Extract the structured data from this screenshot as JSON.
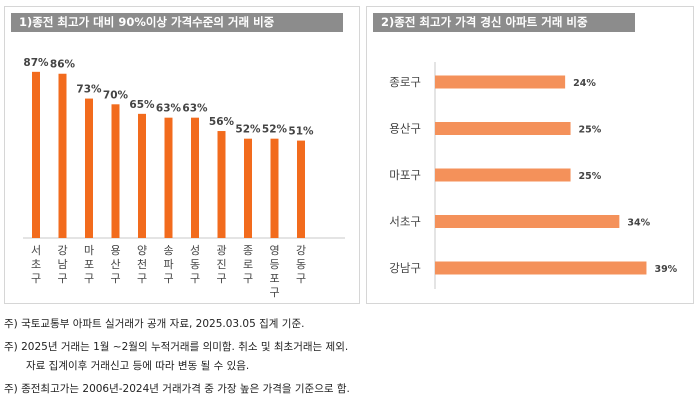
{
  "chart_data": [
    {
      "type": "bar",
      "title": "1)종전 최고가 대비 90%이상 가격수준의 거래 비중",
      "categories": [
        "서초구",
        "강남구",
        "마포구",
        "용산구",
        "양천구",
        "송파구",
        "성동구",
        "광진구",
        "종로구",
        "영등포구",
        "강동구"
      ],
      "values": [
        87,
        86,
        73,
        70,
        65,
        63,
        63,
        56,
        52,
        52,
        51
      ],
      "value_labels": [
        "87%",
        "86%",
        "73%",
        "70%",
        "65%",
        "63%",
        "63%",
        "56%",
        "52%",
        "52%",
        "51%"
      ],
      "ylim": [
        0,
        100
      ],
      "color": "#f26b1d"
    },
    {
      "type": "bar",
      "orientation": "horizontal",
      "title": "2)종전 최고가 가격 경신 아파트 거래 비중",
      "categories": [
        "종로구",
        "용산구",
        "마포구",
        "서초구",
        "강남구"
      ],
      "values": [
        24,
        25,
        25,
        34,
        39
      ],
      "value_labels": [
        "24%",
        "25%",
        "25%",
        "34%",
        "39%"
      ],
      "xlim": [
        0,
        45
      ],
      "color": "#f4915a"
    }
  ],
  "notes": {
    "n0": "주) 국토교통부 아파트 실거래가 공개 자료, 2025.03.05 집계 기준.",
    "n1": "주) 2025년 거래는 1월 ~2월의 누적거래를 의미함. 취소 및 최초거래는 제외.",
    "n1b": "자료 집계이후 거래신고 등에 따라 변동 될 수 있음.",
    "n2": "주) 종전최고가는 2006년-2024년 거래가격 중 가장 높은 가격을 기준으로 함."
  }
}
